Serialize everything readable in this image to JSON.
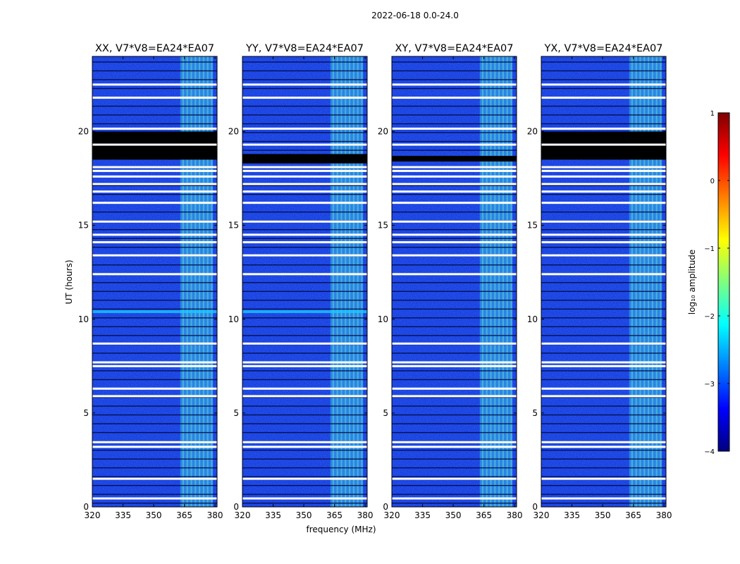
{
  "figure": {
    "suptitle": "2022-06-18 0.0-24.0"
  },
  "chart_data": {
    "type": "heatmap",
    "shared": {
      "xlabel": "frequency (MHz)",
      "ylabel": "UT (hours)",
      "xlim": [
        320,
        381
      ],
      "ylim": [
        0,
        24
      ],
      "xticks": [
        320,
        335,
        350,
        365,
        380
      ],
      "yticks": [
        0,
        5,
        10,
        15,
        20
      ],
      "rfi_band_mhz": [
        363,
        379
      ],
      "flagged_hours_white": [
        0.45,
        1.5,
        3.2,
        3.45,
        5.9,
        6.3,
        7.5,
        7.7,
        8.7,
        12.4,
        13.4,
        14.1,
        14.5,
        15.2,
        16.2,
        16.8,
        17.2,
        17.6,
        17.9,
        18.1,
        19.3,
        20.15,
        21.8,
        22.5
      ]
    },
    "panels": [
      {
        "title": "XX, V7*V8=EA24*EA07",
        "no_data_hours": [
          18.5,
          20.0
        ],
        "extra_band_hour": 10.4
      },
      {
        "title": "YY, V7*V8=EA24*EA07",
        "no_data_hours": [
          18.3,
          18.8
        ],
        "extra_band_hour": 10.4
      },
      {
        "title": "XY, V7*V8=EA24*EA07",
        "no_data_hours": [
          18.4,
          18.7
        ],
        "extra_band_hour": null
      },
      {
        "title": "YX, V7*V8=EA24*EA07",
        "no_data_hours": [
          18.5,
          20.0
        ],
        "extra_band_hour": null
      }
    ],
    "colorbar": {
      "label": "log₁₀ amplitude",
      "range": [
        -4,
        1
      ],
      "ticks": [
        {
          "value": 1,
          "label": "1"
        },
        {
          "value": 0,
          "label": "0"
        },
        {
          "value": -1,
          "label": "−1"
        },
        {
          "value": -2,
          "label": "−2"
        },
        {
          "value": -3,
          "label": "−3"
        },
        {
          "value": -4,
          "label": "−4"
        }
      ],
      "colormap": "jet",
      "colors": [
        "#00007f",
        "#0000ff",
        "#007fff",
        "#00ffff",
        "#7fff7f",
        "#ffff00",
        "#ff7f00",
        "#ff0000",
        "#7f0000"
      ]
    }
  }
}
